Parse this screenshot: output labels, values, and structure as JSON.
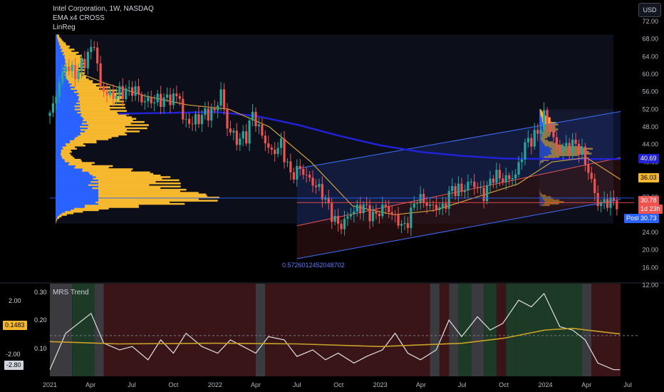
{
  "header": {
    "title": "Intel Corporation, 1W, NASDAQ",
    "indicators": [
      "EMA x4 CROSS",
      "LinReg"
    ],
    "currency": "USD"
  },
  "price_tags": {
    "ema_a": "40.69",
    "ema_b": "36.03",
    "last": "30.78",
    "countdown": "1d 23h",
    "post_label": "Post",
    "post": "30.73"
  },
  "linreg_label": "0.5726012452048702",
  "sub_pane": {
    "title": "MRS Trend",
    "left_ticks": [
      "2.00",
      "-2.00"
    ],
    "left_tag_value": "-2.80",
    "right_ticks": [
      "0.30",
      "0.20",
      "0.10"
    ],
    "right_tag_value": "0.1483"
  },
  "colors": {
    "up": "#26a69a",
    "down": "#ef5350",
    "ema_slow": "#2121d6",
    "ema_fast": "#d4a23c",
    "volume_profile": "#f5b82e",
    "volume_profile_side": "#2962ff",
    "channel": "#3f6fff",
    "mrs_line": "#e0e0e0",
    "mrs_ma": "#c9a227"
  },
  "chart_data": [
    {
      "type": "candlestick",
      "title": "Intel Corporation, 1W, NASDAQ",
      "y_ticks": [
        72,
        68,
        64,
        60,
        56,
        52,
        48,
        44,
        40,
        32,
        28,
        24,
        20,
        16,
        12
      ],
      "ylim": [
        12,
        72
      ],
      "x_ticks": [
        "2021",
        "Apr",
        "Jul",
        "Oct",
        "2022",
        "Apr",
        "Jul",
        "Oct",
        "2023",
        "Apr",
        "Jul",
        "Oct",
        "2024",
        "Apr",
        "Jul"
      ],
      "x_tick_dates": [
        "2021-01-01",
        "2021-04-01",
        "2021-07-01",
        "2021-10-01",
        "2022-01-01",
        "2022-04-01",
        "2022-07-01",
        "2022-10-01",
        "2023-01-01",
        "2023-04-01",
        "2023-07-01",
        "2023-10-01",
        "2024-01-01",
        "2024-04-01",
        "2024-07-01"
      ],
      "xlim": [
        "2021-01-01",
        "2024-07-15"
      ],
      "close_anchors": [
        {
          "x": "2021-01-01",
          "y": 50.5
        },
        {
          "x": "2021-01-22",
          "y": 58.0
        },
        {
          "x": "2021-02-05",
          "y": 62.0
        },
        {
          "x": "2021-02-26",
          "y": 60.0
        },
        {
          "x": "2021-03-19",
          "y": 63.0
        },
        {
          "x": "2021-04-09",
          "y": 67.0
        },
        {
          "x": "2021-04-23",
          "y": 57.0
        },
        {
          "x": "2021-05-14",
          "y": 55.0
        },
        {
          "x": "2021-06-11",
          "y": 56.0
        },
        {
          "x": "2021-07-09",
          "y": 56.5
        },
        {
          "x": "2021-07-23",
          "y": 54.0
        },
        {
          "x": "2021-08-27",
          "y": 54.0
        },
        {
          "x": "2021-09-24",
          "y": 54.5
        },
        {
          "x": "2021-10-15",
          "y": 55.0
        },
        {
          "x": "2021-10-22",
          "y": 49.5
        },
        {
          "x": "2021-11-12",
          "y": 49.0
        },
        {
          "x": "2021-12-10",
          "y": 51.0
        },
        {
          "x": "2021-12-31",
          "y": 51.5
        },
        {
          "x": "2022-01-14",
          "y": 56.0
        },
        {
          "x": "2022-01-28",
          "y": 48.0
        },
        {
          "x": "2022-02-18",
          "y": 45.0
        },
        {
          "x": "2022-03-11",
          "y": 46.0
        },
        {
          "x": "2022-03-25",
          "y": 51.0
        },
        {
          "x": "2022-04-15",
          "y": 46.0
        },
        {
          "x": "2022-05-06",
          "y": 42.0
        },
        {
          "x": "2022-05-27",
          "y": 44.0
        },
        {
          "x": "2022-06-17",
          "y": 37.0
        },
        {
          "x": "2022-07-08",
          "y": 38.5
        },
        {
          "x": "2022-07-29",
          "y": 36.0
        },
        {
          "x": "2022-08-26",
          "y": 33.0
        },
        {
          "x": "2022-09-23",
          "y": 26.5
        },
        {
          "x": "2022-10-07",
          "y": 25.5
        },
        {
          "x": "2022-10-28",
          "y": 28.5
        },
        {
          "x": "2022-11-25",
          "y": 30.0
        },
        {
          "x": "2022-12-16",
          "y": 27.5
        },
        {
          "x": "2023-01-13",
          "y": 30.0
        },
        {
          "x": "2023-01-27",
          "y": 28.0
        },
        {
          "x": "2023-02-24",
          "y": 25.0
        },
        {
          "x": "2023-03-24",
          "y": 32.0
        },
        {
          "x": "2023-04-21",
          "y": 30.0
        },
        {
          "x": "2023-05-19",
          "y": 29.5
        },
        {
          "x": "2023-06-09",
          "y": 34.0
        },
        {
          "x": "2023-06-30",
          "y": 33.5
        },
        {
          "x": "2023-07-21",
          "y": 35.5
        },
        {
          "x": "2023-08-18",
          "y": 32.5
        },
        {
          "x": "2023-09-08",
          "y": 37.0
        },
        {
          "x": "2023-10-06",
          "y": 36.0
        },
        {
          "x": "2023-10-27",
          "y": 37.0
        },
        {
          "x": "2023-11-17",
          "y": 44.0
        },
        {
          "x": "2023-12-15",
          "y": 46.5
        },
        {
          "x": "2023-12-29",
          "y": 50.5
        },
        {
          "x": "2024-01-12",
          "y": 47.5
        },
        {
          "x": "2024-01-26",
          "y": 43.0
        },
        {
          "x": "2024-02-16",
          "y": 43.5
        },
        {
          "x": "2024-03-08",
          "y": 44.0
        },
        {
          "x": "2024-03-22",
          "y": 42.0
        },
        {
          "x": "2024-04-05",
          "y": 38.0
        },
        {
          "x": "2024-04-26",
          "y": 30.5
        },
        {
          "x": "2024-05-17",
          "y": 31.0
        },
        {
          "x": "2024-06-07",
          "y": 30.8
        }
      ],
      "series": [
        {
          "name": "EMA x4 CROSS",
          "color": "#2121d6",
          "points": [
            {
              "x": "2021-06-01",
              "y": 51.0
            },
            {
              "x": "2021-10-01",
              "y": 51.2
            },
            {
              "x": "2022-01-01",
              "y": 51.4
            },
            {
              "x": "2022-04-01",
              "y": 50.5
            },
            {
              "x": "2022-07-01",
              "y": 48.5
            },
            {
              "x": "2022-10-01",
              "y": 46.0
            },
            {
              "x": "2023-01-01",
              "y": 43.8
            },
            {
              "x": "2023-04-01",
              "y": 42.3
            },
            {
              "x": "2023-07-01",
              "y": 41.4
            },
            {
              "x": "2023-10-01",
              "y": 40.8
            },
            {
              "x": "2024-01-01",
              "y": 40.7
            },
            {
              "x": "2024-04-01",
              "y": 40.69
            },
            {
              "x": "2024-06-15",
              "y": 40.69
            }
          ]
        },
        {
          "name": "EMA x4 CROSS",
          "color": "#d4a23c",
          "points": [
            {
              "x": "2021-03-01",
              "y": 60.5
            },
            {
              "x": "2021-05-01",
              "y": 58.0
            },
            {
              "x": "2021-08-01",
              "y": 55.0
            },
            {
              "x": "2021-11-01",
              "y": 53.0
            },
            {
              "x": "2022-02-01",
              "y": 52.0
            },
            {
              "x": "2022-05-01",
              "y": 48.0
            },
            {
              "x": "2022-08-01",
              "y": 40.0
            },
            {
              "x": "2022-11-01",
              "y": 30.0
            },
            {
              "x": "2023-02-01",
              "y": 28.0
            },
            {
              "x": "2023-05-01",
              "y": 29.0
            },
            {
              "x": "2023-08-01",
              "y": 32.0
            },
            {
              "x": "2023-11-01",
              "y": 35.0
            },
            {
              "x": "2024-01-15",
              "y": 40.0
            },
            {
              "x": "2024-04-01",
              "y": 41.0
            },
            {
              "x": "2024-06-15",
              "y": 36.03
            }
          ]
        }
      ],
      "linreg_channels": [
        {
          "x0": "2022-07-01",
          "x1": "2024-06-15",
          "lower": [
            18.0,
            31.5
          ],
          "mid": [
            25.5,
            41.0
          ],
          "upper": [
            38.5,
            51.5
          ],
          "color": "#3f6fff"
        }
      ],
      "horizontal_lines": [
        {
          "y": 30.78,
          "color": "#ef5350"
        },
        {
          "y": 31.8,
          "color": "#2962ff"
        }
      ],
      "volume_profiles": [
        {
          "x0": "2021-01-01",
          "x1": "2024-06-15",
          "price_range": [
            26,
            69
          ],
          "poc": 31.5
        },
        {
          "x0": "2023-12-22",
          "x1": "2024-06-15",
          "price_range": [
            30,
            52
          ],
          "poc": 42
        }
      ]
    },
    {
      "type": "line",
      "title": "MRS Trend",
      "xlim": [
        "2021-01-01",
        "2024-07-15"
      ],
      "y_ticks_right": [
        0.3,
        0.2,
        0.1
      ],
      "ylim": [
        0.05,
        0.33
      ],
      "series": [
        {
          "name": "MRS Trend",
          "color": "#e0e0e0",
          "points": [
            {
              "x": "2021-01-01",
              "y": 0.07
            },
            {
              "x": "2021-02-05",
              "y": 0.18
            },
            {
              "x": "2021-03-05",
              "y": 0.21
            },
            {
              "x": "2021-04-02",
              "y": 0.24
            },
            {
              "x": "2021-04-30",
              "y": 0.15
            },
            {
              "x": "2021-06-04",
              "y": 0.13
            },
            {
              "x": "2021-07-02",
              "y": 0.14
            },
            {
              "x": "2021-08-06",
              "y": 0.1
            },
            {
              "x": "2021-09-03",
              "y": 0.16
            },
            {
              "x": "2021-10-01",
              "y": 0.12
            },
            {
              "x": "2021-10-29",
              "y": 0.18
            },
            {
              "x": "2021-12-03",
              "y": 0.14
            },
            {
              "x": "2022-01-07",
              "y": 0.12
            },
            {
              "x": "2022-02-04",
              "y": 0.16
            },
            {
              "x": "2022-03-04",
              "y": 0.14
            },
            {
              "x": "2022-04-01",
              "y": 0.12
            },
            {
              "x": "2022-04-29",
              "y": 0.17
            },
            {
              "x": "2022-06-03",
              "y": 0.16
            },
            {
              "x": "2022-07-01",
              "y": 0.11
            },
            {
              "x": "2022-08-05",
              "y": 0.13
            },
            {
              "x": "2022-09-02",
              "y": 0.1
            },
            {
              "x": "2022-09-30",
              "y": 0.12
            },
            {
              "x": "2022-11-04",
              "y": 0.09
            },
            {
              "x": "2022-12-02",
              "y": 0.11
            },
            {
              "x": "2023-01-06",
              "y": 0.13
            },
            {
              "x": "2023-02-03",
              "y": 0.18
            },
            {
              "x": "2023-03-03",
              "y": 0.12
            },
            {
              "x": "2023-03-31",
              "y": 0.1
            },
            {
              "x": "2023-05-05",
              "y": 0.13
            },
            {
              "x": "2023-06-02",
              "y": 0.22
            },
            {
              "x": "2023-06-30",
              "y": 0.17
            },
            {
              "x": "2023-08-04",
              "y": 0.23
            },
            {
              "x": "2023-09-01",
              "y": 0.19
            },
            {
              "x": "2023-09-29",
              "y": 0.21
            },
            {
              "x": "2023-11-03",
              "y": 0.28
            },
            {
              "x": "2023-12-01",
              "y": 0.26
            },
            {
              "x": "2023-12-29",
              "y": 0.3
            },
            {
              "x": "2024-02-02",
              "y": 0.2
            },
            {
              "x": "2024-03-01",
              "y": 0.19
            },
            {
              "x": "2024-03-29",
              "y": 0.16
            },
            {
              "x": "2024-04-26",
              "y": 0.09
            },
            {
              "x": "2024-05-31",
              "y": 0.07
            },
            {
              "x": "2024-06-14",
              "y": 0.07
            }
          ]
        },
        {
          "name": "MRS Trend",
          "color": "#c9a227",
          "points": [
            {
              "x": "2021-01-01",
              "y": 0.155
            },
            {
              "x": "2021-06-01",
              "y": 0.148
            },
            {
              "x": "2022-01-01",
              "y": 0.15
            },
            {
              "x": "2022-07-01",
              "y": 0.148
            },
            {
              "x": "2023-01-01",
              "y": 0.14
            },
            {
              "x": "2023-07-01",
              "y": 0.15
            },
            {
              "x": "2023-10-01",
              "y": 0.165
            },
            {
              "x": "2024-01-01",
              "y": 0.19
            },
            {
              "x": "2024-03-01",
              "y": 0.195
            },
            {
              "x": "2024-06-14",
              "y": 0.178
            }
          ]
        }
      ],
      "background_bands": [
        {
          "x0": "2021-01-01",
          "x1": "2021-02-19",
          "state": "neutral"
        },
        {
          "x0": "2021-02-19",
          "x1": "2021-04-09",
          "state": "bull"
        },
        {
          "x0": "2021-04-09",
          "x1": "2021-04-30",
          "state": "neutral"
        },
        {
          "x0": "2021-04-30",
          "x1": "2022-04-01",
          "state": "bear"
        },
        {
          "x0": "2022-04-01",
          "x1": "2022-04-22",
          "state": "neutral"
        },
        {
          "x0": "2022-04-22",
          "x1": "2023-04-21",
          "state": "bear"
        },
        {
          "x0": "2023-04-21",
          "x1": "2023-05-12",
          "state": "neutral"
        },
        {
          "x0": "2023-05-12",
          "x1": "2023-06-02",
          "state": "bear"
        },
        {
          "x0": "2023-06-02",
          "x1": "2023-06-23",
          "state": "neutral"
        },
        {
          "x0": "2023-06-23",
          "x1": "2023-07-21",
          "state": "bull"
        },
        {
          "x0": "2023-07-21",
          "x1": "2023-08-18",
          "state": "neutral"
        },
        {
          "x0": "2023-08-18",
          "x1": "2023-09-15",
          "state": "bull"
        },
        {
          "x0": "2023-09-15",
          "x1": "2023-10-06",
          "state": "bear"
        },
        {
          "x0": "2023-10-06",
          "x1": "2023-10-27",
          "state": "bull"
        },
        {
          "x0": "2023-10-27",
          "x1": "2024-03-22",
          "state": "bull"
        },
        {
          "x0": "2024-03-22",
          "x1": "2024-04-12",
          "state": "neutral"
        },
        {
          "x0": "2024-04-12",
          "x1": "2024-06-15",
          "state": "bear"
        }
      ]
    }
  ]
}
